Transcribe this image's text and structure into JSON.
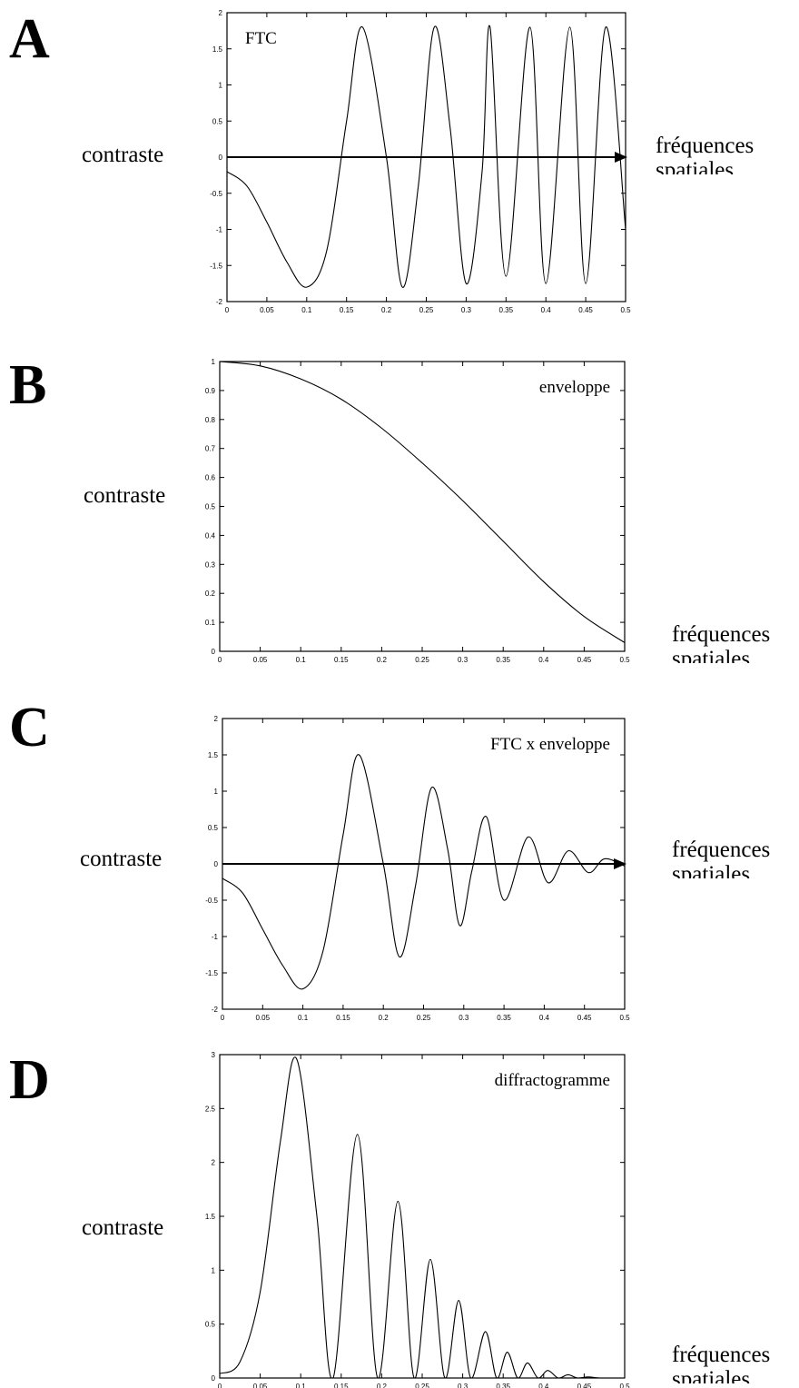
{
  "panels": [
    {
      "letter": "A",
      "ylabel": "contraste",
      "xlabel_line1": "fréquences",
      "xlabel_line2": "spatiales"
    },
    {
      "letter": "B",
      "ylabel": "contraste",
      "xlabel_line1": "fréquences",
      "xlabel_line2": "spatiales"
    },
    {
      "letter": "C",
      "ylabel": "contraste",
      "xlabel_line1": "fréquences",
      "xlabel_line2": "spatiales"
    },
    {
      "letter": "D",
      "ylabel": "contraste",
      "xlabel_line1": "fréquences",
      "xlabel_line2": "spatiales"
    }
  ],
  "chart_data": [
    {
      "type": "line",
      "title": "FTC",
      "xlim": [
        0,
        0.5
      ],
      "ylim": [
        -2,
        2
      ],
      "xticks": [
        "0",
        "0.05",
        "0.1",
        "0.15",
        "0.2",
        "0.25",
        "0.3",
        "0.35",
        "0.4",
        "0.45",
        "0.5"
      ],
      "yticks": [
        "-2",
        "-1.5",
        "-1",
        "-0.5",
        "0",
        "0.5",
        "1",
        "1.5",
        "2"
      ],
      "zero_axis_arrow": true,
      "grid": false,
      "series": [
        {
          "x": [
            0,
            0.025,
            0.05,
            0.075,
            0.1,
            0.125,
            0.15,
            0.17,
            0.2,
            0.22,
            0.24,
            0.26,
            0.28,
            0.3,
            0.32,
            0.33,
            0.35,
            0.38,
            0.4,
            0.43,
            0.45,
            0.475,
            0.5
          ],
          "y": [
            -0.2,
            -0.4,
            -0.9,
            -1.45,
            -1.8,
            -1.3,
            0.5,
            1.8,
            0.0,
            -1.8,
            -0.4,
            1.8,
            0.4,
            -1.75,
            -0.2,
            1.8,
            -1.65,
            1.8,
            -1.75,
            1.8,
            -1.75,
            1.8,
            -1.0
          ]
        }
      ]
    },
    {
      "type": "line",
      "title": "enveloppe",
      "xlim": [
        0,
        0.5
      ],
      "ylim": [
        0,
        1
      ],
      "xticks": [
        "0",
        "0.05",
        "0.1",
        "0.15",
        "0.2",
        "0.25",
        "0.3",
        "0.35",
        "0.4",
        "0.45",
        "0.5"
      ],
      "yticks": [
        "0",
        "0.1",
        "0.2",
        "0.3",
        "0.4",
        "0.5",
        "0.6",
        "0.7",
        "0.8",
        "0.9",
        "1"
      ],
      "zero_axis_arrow": false,
      "grid": false,
      "series": [
        {
          "x": [
            0,
            0.05,
            0.1,
            0.15,
            0.2,
            0.25,
            0.3,
            0.35,
            0.4,
            0.45,
            0.5
          ],
          "y": [
            1.0,
            0.985,
            0.94,
            0.87,
            0.77,
            0.65,
            0.52,
            0.38,
            0.24,
            0.12,
            0.03
          ]
        }
      ]
    },
    {
      "type": "line",
      "title": "FTC x enveloppe",
      "xlim": [
        0,
        0.5
      ],
      "ylim": [
        -2,
        2
      ],
      "xticks": [
        "0",
        "0.05",
        "0.1",
        "0.15",
        "0.2",
        "0.25",
        "0.3",
        "0.35",
        "0.4",
        "0.45",
        "0.5"
      ],
      "yticks": [
        "-2",
        "-1.5",
        "-1",
        "-0.5",
        "0",
        "0.5",
        "1",
        "1.5",
        "2"
      ],
      "zero_axis_arrow": true,
      "grid": false,
      "series": [
        {
          "x": [
            0,
            0.025,
            0.05,
            0.075,
            0.1,
            0.125,
            0.15,
            0.17,
            0.2,
            0.22,
            0.24,
            0.26,
            0.28,
            0.295,
            0.31,
            0.328,
            0.35,
            0.38,
            0.405,
            0.43,
            0.455,
            0.475,
            0.5
          ],
          "y": [
            -0.2,
            -0.4,
            -0.9,
            -1.4,
            -1.72,
            -1.2,
            0.4,
            1.5,
            0.0,
            -1.28,
            -0.3,
            1.05,
            0.2,
            -0.85,
            -0.1,
            0.65,
            -0.5,
            0.37,
            -0.26,
            0.18,
            -0.12,
            0.07,
            -0.03
          ]
        }
      ]
    },
    {
      "type": "line",
      "title": "diffractogramme",
      "xlim": [
        0,
        0.5
      ],
      "ylim": [
        0,
        3
      ],
      "xticks": [
        "0",
        "0.05",
        "0.1",
        "0.15",
        "0.2",
        "0.25",
        "0.3",
        "0.35",
        "0.4",
        "0.45",
        "0.5"
      ],
      "yticks": [
        "0",
        "0.5",
        "1",
        "1.5",
        "2",
        "2.5",
        "3"
      ],
      "zero_axis_arrow": false,
      "grid": false,
      "series": [
        {
          "x": [
            0,
            0.025,
            0.05,
            0.075,
            0.095,
            0.12,
            0.14,
            0.17,
            0.195,
            0.22,
            0.24,
            0.26,
            0.278,
            0.295,
            0.31,
            0.328,
            0.342,
            0.355,
            0.368,
            0.38,
            0.393,
            0.405,
            0.418,
            0.43,
            0.442,
            0.455,
            0.47,
            0.5
          ],
          "y": [
            0.04,
            0.15,
            0.8,
            2.2,
            2.96,
            1.5,
            0.0,
            2.26,
            0.0,
            1.64,
            0.0,
            1.1,
            0.0,
            0.72,
            0.0,
            0.43,
            0.0,
            0.24,
            0.0,
            0.14,
            0.0,
            0.07,
            0.0,
            0.03,
            0.0,
            0.01,
            0.0,
            0.0
          ]
        }
      ]
    }
  ]
}
